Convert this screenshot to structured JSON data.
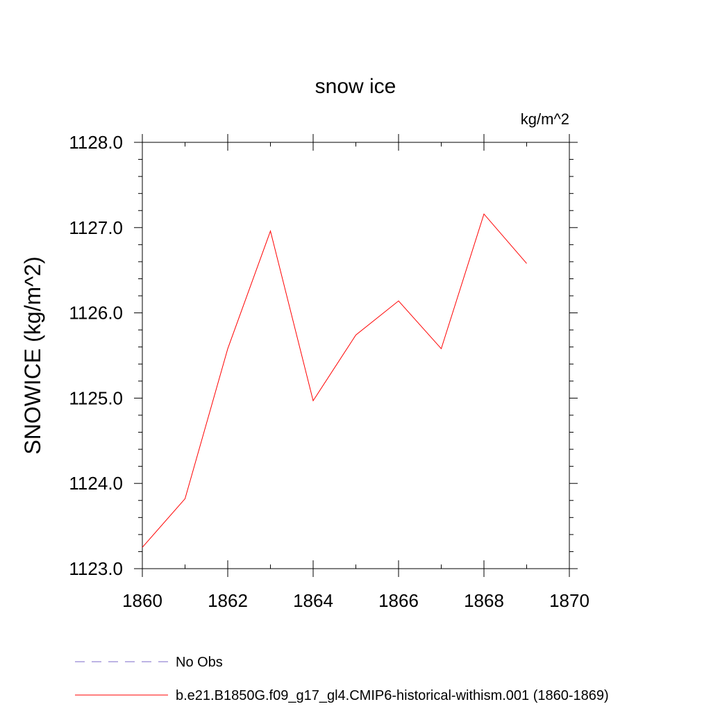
{
  "chart_data": {
    "type": "line",
    "title": "snow ice",
    "units_label": "kg/m^2",
    "ylabel": "SNOWICE  (kg/m^2)",
    "xlabel": "",
    "xlim": [
      1860,
      1870
    ],
    "ylim": [
      1123.0,
      1128.0
    ],
    "x_ticks": [
      1860,
      1862,
      1864,
      1866,
      1868,
      1870
    ],
    "x_tick_labels": [
      "1860",
      "1862",
      "1864",
      "1866",
      "1868",
      "1870"
    ],
    "y_ticks": [
      1123.0,
      1124.0,
      1125.0,
      1126.0,
      1127.0,
      1128.0
    ],
    "y_tick_labels": [
      "1123.0",
      "1124.0",
      "1125.0",
      "1126.0",
      "1127.0",
      "1128.0"
    ],
    "grid": false,
    "legend_placement": "bottom",
    "series": [
      {
        "name": "b.e21.B1850G.f09_g17_gl4.CMIP6-historical-withism.001 (1860-1869)",
        "color": "#ff0000",
        "style": "solid",
        "x": [
          1860,
          1861,
          1862,
          1863,
          1864,
          1865,
          1866,
          1867,
          1868,
          1869
        ],
        "y": [
          1123.25,
          1123.82,
          1125.58,
          1126.96,
          1124.97,
          1125.74,
          1126.14,
          1125.58,
          1127.16,
          1126.58
        ]
      }
    ],
    "legend": [
      {
        "label": "No Obs",
        "color": "#7b68c9",
        "style": "dashed"
      },
      {
        "label": "b.e21.B1850G.f09_g17_gl4.CMIP6-historical-withism.001 (1860-1869)",
        "color": "#ff0000",
        "style": "solid"
      }
    ]
  }
}
